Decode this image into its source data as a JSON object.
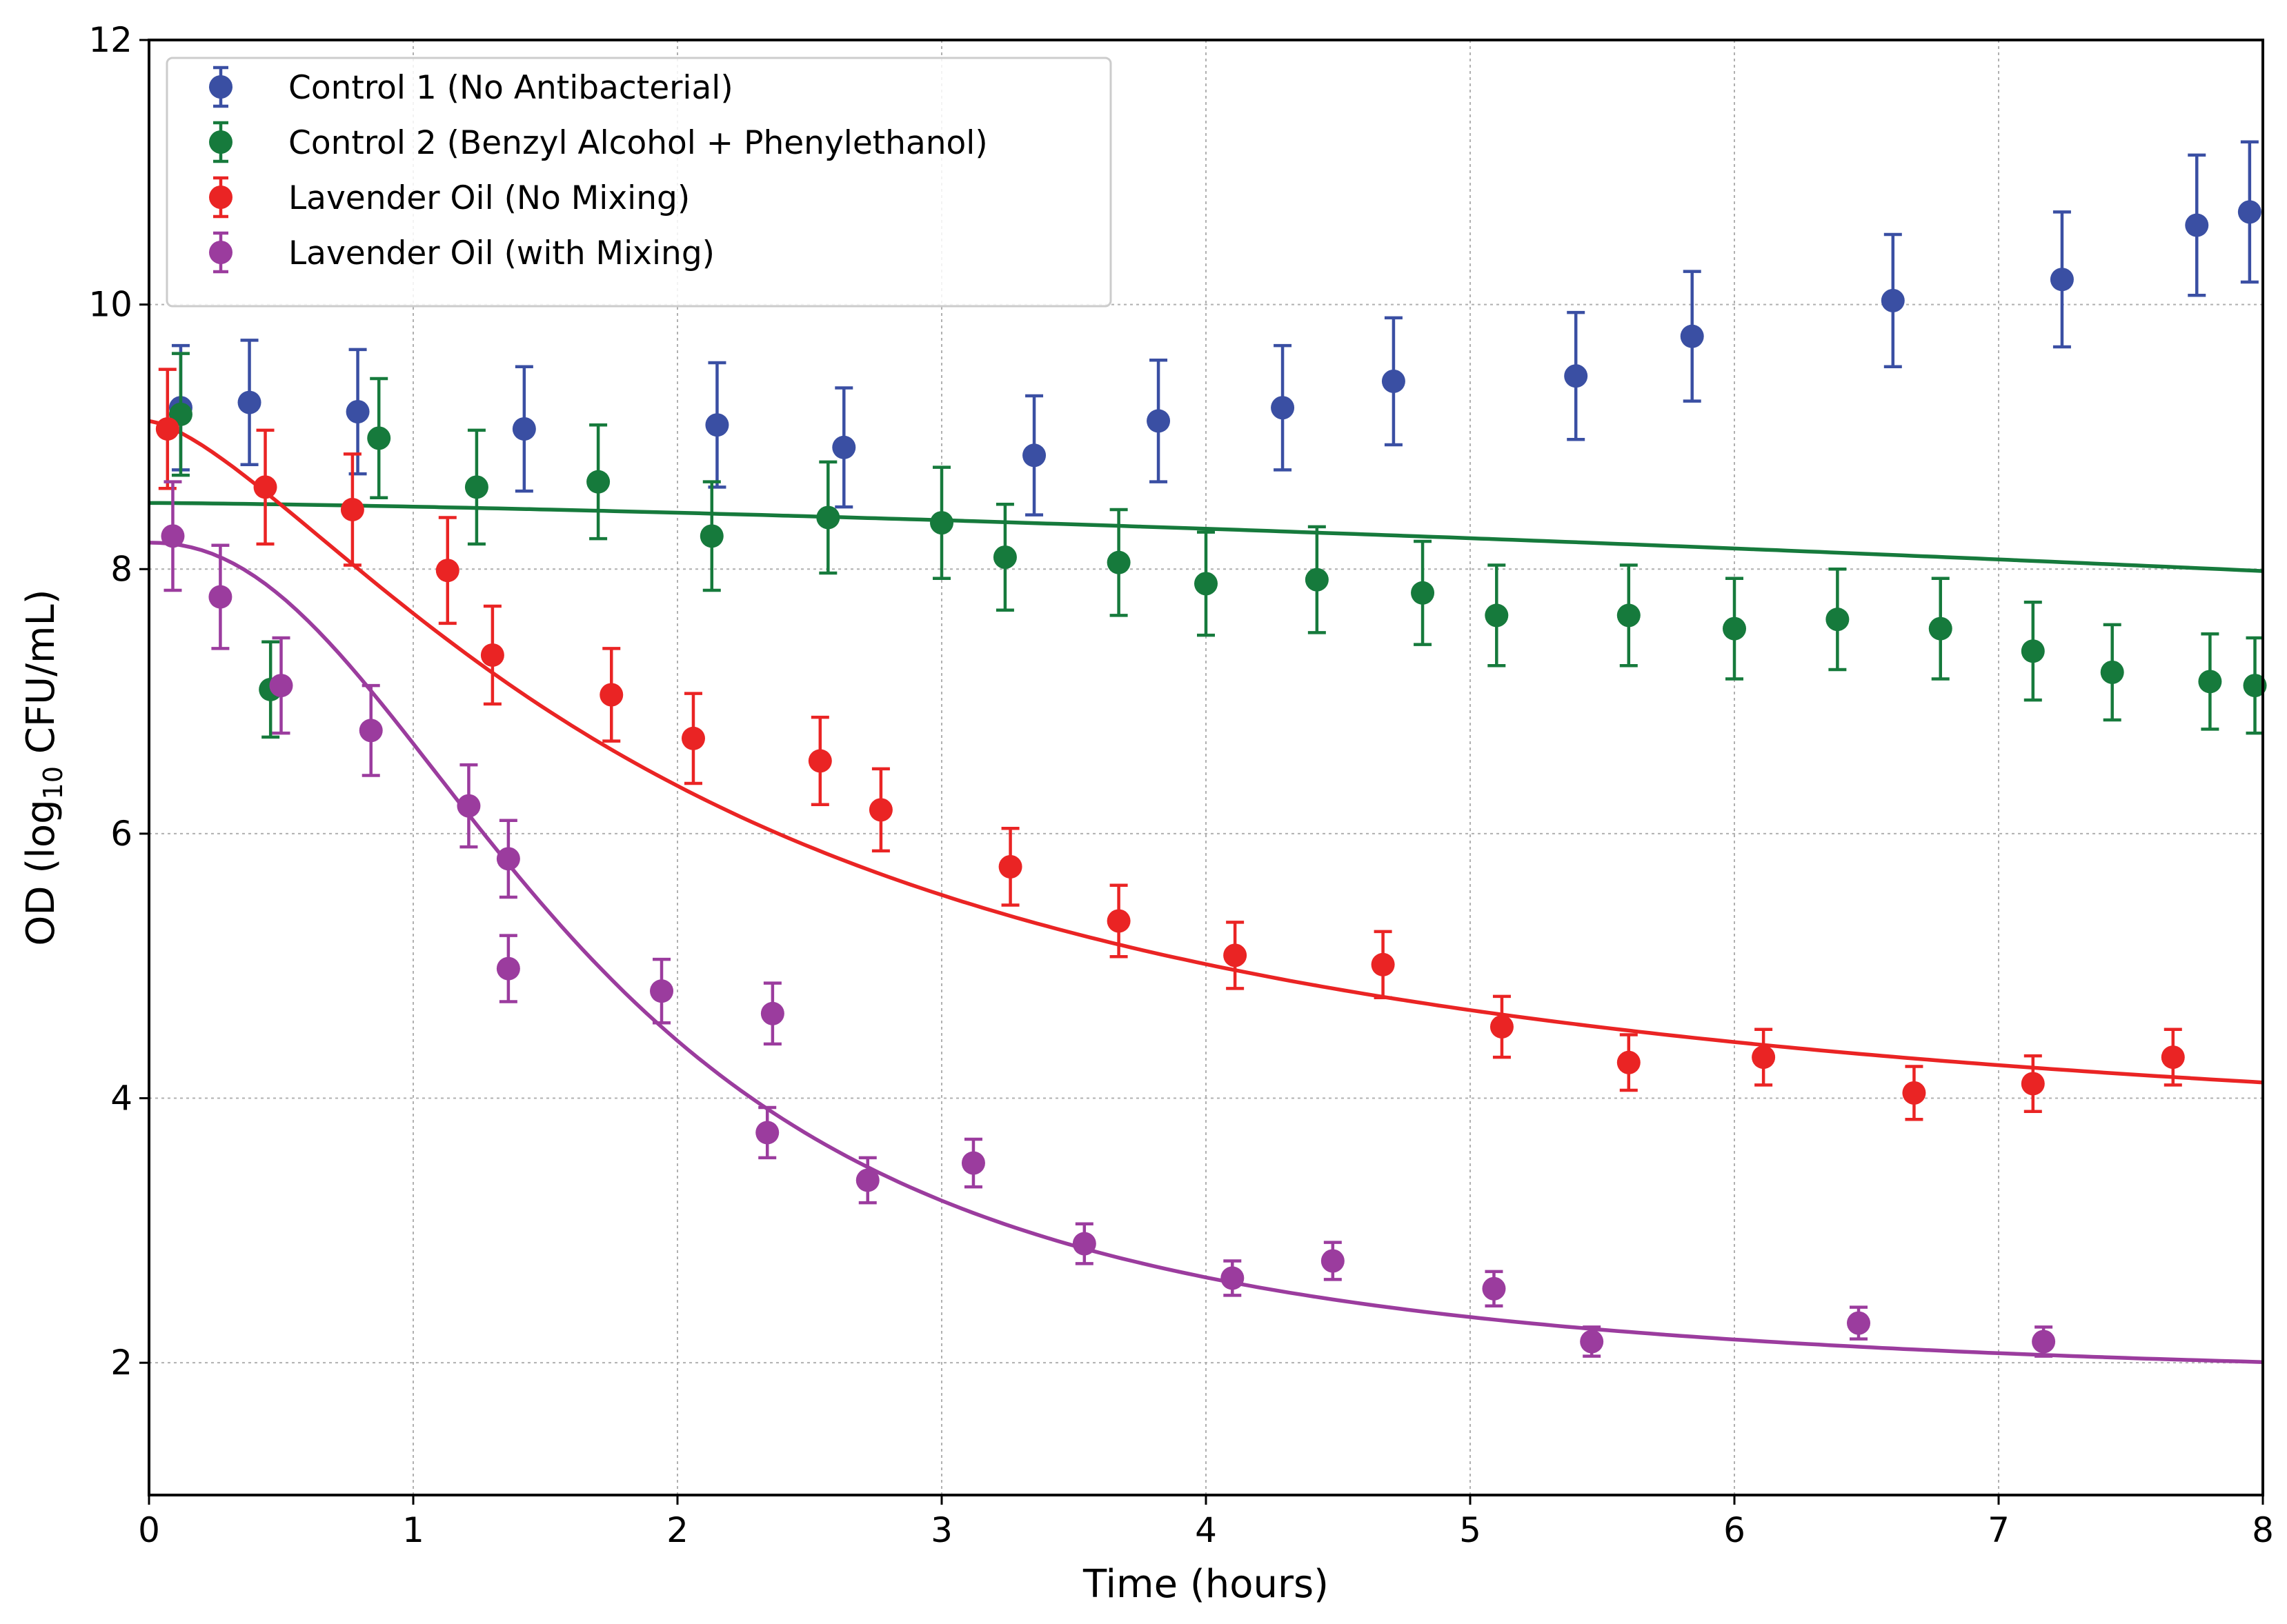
{
  "chart_data": {
    "type": "scatter",
    "title": "",
    "xlabel": "Time (hours)",
    "ylabel": {
      "prefix": "OD (log",
      "sub": "10",
      "suffix": " CFU/mL)"
    },
    "xlim": [
      0,
      8
    ],
    "ylim": [
      1,
      12
    ],
    "xticks": [
      0,
      1,
      2,
      3,
      4,
      5,
      6,
      7,
      8
    ],
    "yticks": [
      2,
      4,
      6,
      8,
      10,
      12
    ],
    "grid": true,
    "legend_position": "upper-left",
    "series": [
      {
        "name": "Control 1 (No Antibacterial)",
        "color": "#3a4fa3",
        "points": [
          {
            "x": 0.12,
            "y": 9.22,
            "err": 0.47
          },
          {
            "x": 0.38,
            "y": 9.26,
            "err": 0.47
          },
          {
            "x": 0.79,
            "y": 9.19,
            "err": 0.47
          },
          {
            "x": 1.42,
            "y": 9.06,
            "err": 0.47
          },
          {
            "x": 2.15,
            "y": 9.09,
            "err": 0.47
          },
          {
            "x": 2.63,
            "y": 8.92,
            "err": 0.45
          },
          {
            "x": 3.35,
            "y": 8.86,
            "err": 0.45
          },
          {
            "x": 3.82,
            "y": 9.12,
            "err": 0.46
          },
          {
            "x": 4.29,
            "y": 9.22,
            "err": 0.47
          },
          {
            "x": 4.71,
            "y": 9.42,
            "err": 0.48
          },
          {
            "x": 5.4,
            "y": 9.46,
            "err": 0.48
          },
          {
            "x": 5.84,
            "y": 9.76,
            "err": 0.49
          },
          {
            "x": 6.6,
            "y": 10.03,
            "err": 0.5
          },
          {
            "x": 7.24,
            "y": 10.19,
            "err": 0.51
          },
          {
            "x": 7.75,
            "y": 10.6,
            "err": 0.53
          },
          {
            "x": 7.95,
            "y": 10.7,
            "err": 0.53
          }
        ]
      },
      {
        "name": "Control 2 (Benzyl Alcohol + Phenylethanol)",
        "color": "#167a3c",
        "fit": {
          "y0": 8.5,
          "k": 0.028,
          "p": 1.4
        },
        "points": [
          {
            "x": 0.12,
            "y": 9.17,
            "err": 0.46
          },
          {
            "x": 0.46,
            "y": 7.09,
            "err": 0.36
          },
          {
            "x": 0.87,
            "y": 8.99,
            "err": 0.45
          },
          {
            "x": 1.24,
            "y": 8.62,
            "err": 0.43
          },
          {
            "x": 1.7,
            "y": 8.66,
            "err": 0.43
          },
          {
            "x": 2.13,
            "y": 8.25,
            "err": 0.41
          },
          {
            "x": 2.57,
            "y": 8.39,
            "err": 0.42
          },
          {
            "x": 3.0,
            "y": 8.35,
            "err": 0.42
          },
          {
            "x": 3.24,
            "y": 8.09,
            "err": 0.4
          },
          {
            "x": 3.67,
            "y": 8.05,
            "err": 0.4
          },
          {
            "x": 4.0,
            "y": 7.89,
            "err": 0.39
          },
          {
            "x": 4.42,
            "y": 7.92,
            "err": 0.4
          },
          {
            "x": 4.82,
            "y": 7.82,
            "err": 0.39
          },
          {
            "x": 5.1,
            "y": 7.65,
            "err": 0.38
          },
          {
            "x": 5.6,
            "y": 7.65,
            "err": 0.38
          },
          {
            "x": 6.0,
            "y": 7.55,
            "err": 0.38
          },
          {
            "x": 6.39,
            "y": 7.62,
            "err": 0.38
          },
          {
            "x": 6.78,
            "y": 7.55,
            "err": 0.38
          },
          {
            "x": 7.13,
            "y": 7.38,
            "err": 0.37
          },
          {
            "x": 7.43,
            "y": 7.22,
            "err": 0.36
          },
          {
            "x": 7.8,
            "y": 7.15,
            "err": 0.36
          },
          {
            "x": 7.97,
            "y": 7.12,
            "err": 0.36
          }
        ]
      },
      {
        "name": "Lavender Oil (No Mixing)",
        "color": "#ea2424",
        "fit": {
          "ymin": 3.4,
          "ymax": 9.12,
          "t0": 2.1,
          "n": 1.45
        },
        "points": [
          {
            "x": 0.07,
            "y": 9.06,
            "err": 0.45
          },
          {
            "x": 0.44,
            "y": 8.62,
            "err": 0.43
          },
          {
            "x": 0.77,
            "y": 8.45,
            "err": 0.42
          },
          {
            "x": 1.13,
            "y": 7.99,
            "err": 0.4
          },
          {
            "x": 1.3,
            "y": 7.35,
            "err": 0.37
          },
          {
            "x": 1.75,
            "y": 7.05,
            "err": 0.35
          },
          {
            "x": 2.06,
            "y": 6.72,
            "err": 0.34
          },
          {
            "x": 2.54,
            "y": 6.55,
            "err": 0.33
          },
          {
            "x": 2.77,
            "y": 6.18,
            "err": 0.31
          },
          {
            "x": 3.26,
            "y": 5.75,
            "err": 0.29
          },
          {
            "x": 3.67,
            "y": 5.34,
            "err": 0.27
          },
          {
            "x": 4.11,
            "y": 5.08,
            "err": 0.25
          },
          {
            "x": 4.67,
            "y": 5.01,
            "err": 0.25
          },
          {
            "x": 5.12,
            "y": 4.54,
            "err": 0.23
          },
          {
            "x": 5.6,
            "y": 4.27,
            "err": 0.21
          },
          {
            "x": 6.11,
            "y": 4.31,
            "err": 0.21
          },
          {
            "x": 6.68,
            "y": 4.04,
            "err": 0.2
          },
          {
            "x": 7.13,
            "y": 4.11,
            "err": 0.21
          },
          {
            "x": 7.66,
            "y": 4.31,
            "err": 0.21
          }
        ]
      },
      {
        "name": "Lavender Oil (with Mixing)",
        "color": "#9b3c9e",
        "fit": {
          "ymin": 1.8,
          "ymax": 8.2,
          "t0": 1.7,
          "n": 2.2
        },
        "points": [
          {
            "x": 0.09,
            "y": 8.25,
            "err": 0.41
          },
          {
            "x": 0.27,
            "y": 7.79,
            "err": 0.39
          },
          {
            "x": 0.5,
            "y": 7.12,
            "err": 0.36
          },
          {
            "x": 0.84,
            "y": 6.78,
            "err": 0.34
          },
          {
            "x": 1.21,
            "y": 6.21,
            "err": 0.31
          },
          {
            "x": 1.36,
            "y": 5.81,
            "err": 0.29
          },
          {
            "x": 1.36,
            "y": 4.98,
            "err": 0.25
          },
          {
            "x": 1.94,
            "y": 4.81,
            "err": 0.24
          },
          {
            "x": 2.36,
            "y": 4.64,
            "err": 0.23
          },
          {
            "x": 2.34,
            "y": 3.74,
            "err": 0.19
          },
          {
            "x": 2.72,
            "y": 3.38,
            "err": 0.17
          },
          {
            "x": 3.12,
            "y": 3.51,
            "err": 0.18
          },
          {
            "x": 3.54,
            "y": 2.9,
            "err": 0.15
          },
          {
            "x": 4.1,
            "y": 2.64,
            "err": 0.13
          },
          {
            "x": 4.48,
            "y": 2.77,
            "err": 0.14
          },
          {
            "x": 5.09,
            "y": 2.56,
            "err": 0.13
          },
          {
            "x": 5.46,
            "y": 2.16,
            "err": 0.11
          },
          {
            "x": 6.47,
            "y": 2.3,
            "err": 0.12
          },
          {
            "x": 7.17,
            "y": 2.16,
            "err": 0.11
          }
        ]
      }
    ]
  }
}
